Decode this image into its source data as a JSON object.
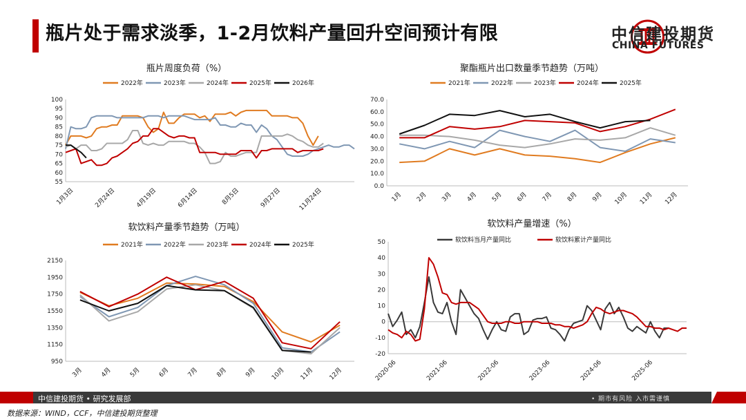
{
  "page": {
    "title": "瓶片处于需求淡季，1-2月饮料产量回升空间预计有限",
    "logo_cn": "中信建投期货",
    "logo_en": "CHINA FUTURES",
    "footer_left": "中信建投期货 • 研究发展部",
    "footer_right": "• 期市有风险  入市需谨慎",
    "source": "数据来源：WIND，CCF，中信建投期货整理",
    "colors": {
      "accent": "#c00000",
      "footer": "#3a3a3a"
    }
  },
  "chart_data": [
    {
      "type": "line",
      "title": "瓶片周度负荷（%）",
      "x_tick_labels": [
        "1月3日",
        "2月24日",
        "4月19日",
        "6月14日",
        "8月5日",
        "9月27日",
        "11月24日"
      ],
      "ylim": [
        55,
        100
      ],
      "yticks": [
        55,
        60,
        65,
        70,
        75,
        80,
        85,
        90,
        95,
        100
      ],
      "legend": "top",
      "series": [
        {
          "name": "2022年",
          "color": "#e07b20",
          "values": [
            75,
            80,
            80,
            80,
            79,
            80,
            84,
            85,
            85,
            86,
            86,
            91,
            91,
            91,
            91,
            90,
            85,
            82,
            84,
            93,
            87,
            87,
            90,
            92,
            92,
            92,
            90,
            91,
            88,
            92,
            92,
            92,
            93,
            91,
            93,
            94,
            94,
            94,
            94,
            94,
            91,
            91,
            91,
            91,
            90,
            90,
            87,
            80,
            75,
            80
          ]
        },
        {
          "name": "2023年",
          "color": "#7f97b3",
          "values": [
            73,
            85,
            84,
            84,
            85,
            90,
            91,
            91,
            91,
            91,
            90,
            90,
            90,
            90,
            90,
            90,
            91,
            91,
            91,
            90,
            91,
            91,
            91,
            91,
            90,
            89,
            89,
            89,
            89,
            90,
            86,
            86,
            85,
            85,
            87,
            86,
            86,
            82,
            86,
            84,
            80,
            78,
            74,
            70,
            69,
            69,
            69,
            70,
            72,
            73,
            74,
            75,
            74,
            74,
            75,
            75,
            73
          ]
        },
        {
          "name": "2024年",
          "color": "#a8a8a8",
          "values": [
            74,
            75,
            73,
            75,
            75,
            72,
            72,
            73,
            76,
            76,
            76,
            76,
            78,
            83,
            83,
            76,
            75,
            76,
            75,
            75,
            77,
            77,
            77,
            77,
            76,
            76,
            74,
            71,
            65,
            65,
            66,
            71,
            69,
            69,
            70,
            71,
            71,
            71,
            80,
            80,
            80,
            80,
            80,
            81,
            80,
            78,
            77,
            75,
            74,
            74,
            76
          ]
        },
        {
          "name": "2025年",
          "color": "#c00000",
          "values": [
            71,
            72,
            73,
            65,
            66,
            67,
            64,
            64,
            65,
            68,
            69,
            71,
            73,
            76,
            77,
            80,
            80,
            84,
            84,
            82,
            80,
            79,
            80,
            80,
            79,
            79,
            71,
            71,
            71,
            71,
            70,
            70,
            70,
            70,
            72,
            72,
            72,
            68,
            72,
            72,
            73,
            73,
            73,
            73,
            73,
            71,
            72,
            72,
            72,
            72,
            73
          ]
        },
        {
          "name": "2026年",
          "color": "#111111",
          "values": [
            75,
            75,
            73,
            71,
            68
          ]
        }
      ]
    },
    {
      "type": "line",
      "title": "聚酯瓶片出口数量季节趋势（万吨）",
      "categories": [
        "1月",
        "2月",
        "3月",
        "4月",
        "5月",
        "6月",
        "7月",
        "8月",
        "9月",
        "10月",
        "11月",
        "12月"
      ],
      "ylim": [
        0,
        70
      ],
      "yticks": [
        0,
        10,
        20,
        30,
        40,
        50,
        60,
        70
      ],
      "legend": "top",
      "series": [
        {
          "name": "2021年",
          "color": "#e07b20",
          "values": [
            19,
            20,
            30,
            25,
            30,
            25,
            24,
            22,
            19,
            27,
            34,
            39
          ]
        },
        {
          "name": "2022年",
          "color": "#7f97b3",
          "values": [
            34,
            30,
            36,
            31,
            45,
            40,
            36,
            45,
            31,
            28,
            38,
            35
          ]
        },
        {
          "name": "2023年",
          "color": "#a8a8a8",
          "values": [
            41,
            41,
            40,
            37,
            33,
            31,
            34,
            38,
            37,
            39,
            47,
            41
          ]
        },
        {
          "name": "2024年",
          "color": "#c00000",
          "values": [
            39,
            39,
            48,
            46,
            48,
            53,
            52,
            51,
            44,
            48,
            54,
            62
          ]
        },
        {
          "name": "2025年",
          "color": "#111111",
          "values": [
            42,
            49,
            58,
            57,
            61,
            56,
            58,
            52,
            47,
            52,
            53,
            null
          ]
        }
      ]
    },
    {
      "type": "line",
      "title": "软饮料产量季节趋势（万吨）",
      "categories": [
        "3月",
        "4月",
        "5月",
        "6月",
        "7月",
        "8月",
        "9月",
        "10月",
        "11月",
        "12月"
      ],
      "ylim": [
        950,
        2150
      ],
      "yticks": [
        950,
        1150,
        1350,
        1550,
        1750,
        1950,
        2150
      ],
      "legend": "top",
      "series": [
        {
          "name": "2021年",
          "color": "#e07b20",
          "values": [
            1770,
            1610,
            1700,
            1880,
            1870,
            1840,
            1660,
            1300,
            1180,
            1380
          ]
        },
        {
          "name": "2022年",
          "color": "#7f97b3",
          "values": [
            1720,
            1480,
            1590,
            1850,
            1960,
            1860,
            1640,
            1110,
            1060,
            1300
          ]
        },
        {
          "name": "2023年",
          "color": "#a8a8a8",
          "values": [
            1740,
            1430,
            1540,
            1810,
            1860,
            1790,
            1580,
            1080,
            1040,
            1350
          ]
        },
        {
          "name": "2024年",
          "color": "#c00000",
          "values": [
            1780,
            1600,
            1750,
            1950,
            1800,
            1900,
            1700,
            1170,
            1100,
            1420
          ]
        },
        {
          "name": "2025年",
          "color": "#111111",
          "values": [
            1680,
            1550,
            1640,
            1850,
            1800,
            1790,
            1590,
            1080,
            1060,
            null
          ]
        }
      ]
    },
    {
      "type": "line",
      "title": "软饮料产量增速（%）",
      "x_tick_labels": [
        "2020-06",
        "2021-06",
        "2022-06",
        "2023-06",
        "2024-06",
        "2025-06"
      ],
      "ylim": [
        -20,
        50
      ],
      "yticks": [
        -20,
        -10,
        0,
        10,
        20,
        30,
        40,
        50
      ],
      "legend": "top",
      "series": [
        {
          "name": "软饮料当月产量同比",
          "color": "#3a3a3a",
          "values": [
            5,
            -3,
            1,
            6,
            -8,
            -5,
            -10,
            -3,
            12,
            28,
            12,
            6,
            5,
            12,
            0,
            -8,
            20,
            15,
            10,
            5,
            2,
            -5,
            -11,
            -5,
            0,
            -5,
            -6,
            3,
            5,
            5,
            -8,
            -6,
            1,
            2,
            2,
            3,
            -4,
            -5,
            -8,
            -12,
            -5,
            -1,
            0,
            1,
            10,
            7,
            1,
            -5,
            8,
            12,
            5,
            9,
            3,
            -4,
            -6,
            -3,
            -5,
            -7,
            0,
            -6,
            -10,
            -4,
            -4
          ]
        },
        {
          "name": "软饮料累计产量同比",
          "color": "#c00000",
          "values": [
            -5,
            -7,
            -8,
            -10,
            -6,
            -8,
            -12,
            -11,
            8,
            40,
            36,
            28,
            18,
            17,
            12,
            11,
            12,
            12,
            12,
            10,
            8,
            4,
            0,
            -1,
            -1,
            -1,
            0,
            0,
            -1,
            -1,
            0,
            0,
            0,
            0,
            -1,
            -1,
            -1,
            -2,
            -2,
            -3,
            -3,
            -4,
            -3,
            -2,
            0,
            5,
            9,
            8,
            6,
            5,
            6,
            7,
            7,
            6,
            5,
            3,
            0,
            -3,
            -3,
            -4,
            -4,
            -5,
            -4,
            -5,
            -6,
            -4,
            -4
          ]
        }
      ]
    }
  ]
}
